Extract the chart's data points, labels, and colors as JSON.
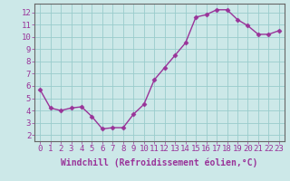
{
  "x": [
    0,
    1,
    2,
    3,
    4,
    5,
    6,
    7,
    8,
    9,
    10,
    11,
    12,
    13,
    14,
    15,
    16,
    17,
    18,
    19,
    20,
    21,
    22,
    23
  ],
  "y": [
    5.7,
    4.2,
    4.0,
    4.2,
    4.3,
    3.5,
    2.5,
    2.6,
    2.6,
    3.7,
    4.5,
    6.5,
    7.5,
    8.5,
    9.5,
    11.6,
    11.8,
    12.2,
    12.2,
    11.4,
    10.9,
    10.2,
    10.2,
    10.5
  ],
  "line_color": "#993399",
  "marker": "D",
  "marker_size": 2.5,
  "bg_color": "#cce8e8",
  "grid_color": "#99cccc",
  "xlabel": "Windchill (Refroidissement éolien,°C)",
  "xlim": [
    -0.5,
    23.5
  ],
  "ylim": [
    1.5,
    12.7
  ],
  "xticks": [
    0,
    1,
    2,
    3,
    4,
    5,
    6,
    7,
    8,
    9,
    10,
    11,
    12,
    13,
    14,
    15,
    16,
    17,
    18,
    19,
    20,
    21,
    22,
    23
  ],
  "yticks": [
    2,
    3,
    4,
    5,
    6,
    7,
    8,
    9,
    10,
    11,
    12
  ],
  "xlabel_fontsize": 7,
  "tick_fontsize": 6.5,
  "line_width": 1.0
}
